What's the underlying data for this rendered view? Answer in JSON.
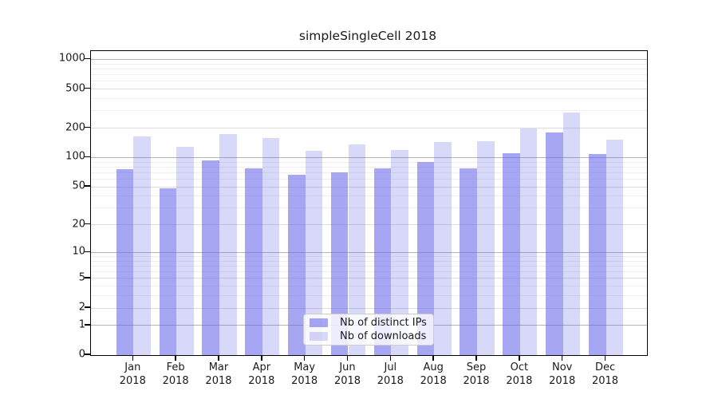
{
  "chart_data": {
    "type": "bar",
    "title": "simpleSingleCell 2018",
    "categories": [
      "Jan",
      "Feb",
      "Mar",
      "Apr",
      "May",
      "Jun",
      "Jul",
      "Aug",
      "Sep",
      "Oct",
      "Nov",
      "Dec"
    ],
    "category_year": "2018",
    "series": [
      {
        "name": "Nb of distinct IPs",
        "color": "rgba(99,99,232,0.57)",
        "values": [
          76,
          48,
          93,
          77,
          67,
          71,
          78,
          90,
          78,
          110,
          182,
          108
        ]
      },
      {
        "name": "Nb of downloads",
        "color": "rgba(99,99,232,0.25)",
        "values": [
          165,
          130,
          175,
          157,
          117,
          137,
          119,
          144,
          146,
          200,
          289,
          153
        ]
      }
    ],
    "xlabel": "",
    "ylabel": "",
    "yscale": "log1p",
    "yticks": [
      0,
      1,
      2,
      5,
      10,
      20,
      50,
      100,
      200,
      500,
      1000
    ],
    "ytick_labels": [
      "0",
      "1",
      "2",
      "5",
      "10",
      "20",
      "50",
      "100",
      "200",
      "500",
      "1000"
    ],
    "yminor_ticks": [
      3,
      4,
      6,
      7,
      8,
      9,
      30,
      40,
      60,
      70,
      80,
      90,
      300,
      400,
      600,
      700,
      800,
      900
    ],
    "ylim": [
      0,
      1215
    ],
    "grid": true,
    "legend_position": "lower center"
  },
  "colors": {
    "bar_base": "#6363e8",
    "grid_power10": "#b5b5b5",
    "grid_labeled": "#dcdcdc",
    "grid_minor": "#eeeeee",
    "spine": "#000000",
    "text": "#1a1a1a"
  }
}
